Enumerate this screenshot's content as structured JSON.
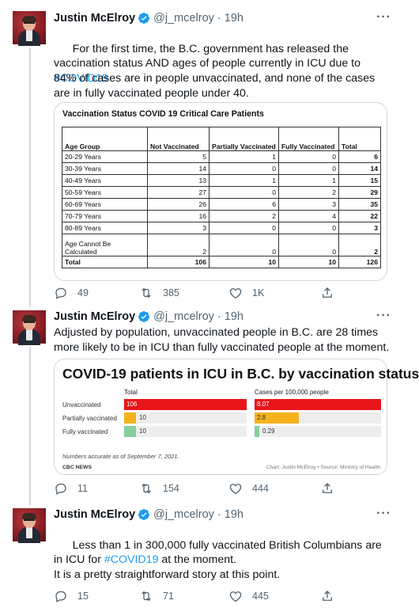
{
  "author": {
    "name": "Justin McElroy",
    "handle": "@j_mcelroy",
    "dot": "·",
    "more": "···"
  },
  "icons": {
    "verified": "verified-badge-icon",
    "reply": "reply-icon",
    "retweet": "retweet-icon",
    "like": "like-icon",
    "share": "share-icon",
    "more": "more-options-icon"
  },
  "colors": {
    "link": "#1d9bf0",
    "secondary": "#536471",
    "verified": "#1d9bf0"
  },
  "tweets": [
    {
      "time": "19h",
      "text_part1": "For the first time, the B.C. government has released the vaccination status AND ages of people currently in ICU due to ",
      "hashtag": "#COVID19",
      "text_part2": "84% of cases are in people unvaccinated, and none of the cases are in fully vaccinated people under 40.",
      "replies": "49",
      "retweets": "385",
      "likes": "1K"
    },
    {
      "time": "19h",
      "text": "Adjusted by population, unvaccinated people in B.C. are 28 times more likely to be in ICU than fully vaccinated people at the moment.",
      "replies": "11",
      "retweets": "154",
      "likes": "444"
    },
    {
      "time": "19h",
      "text_part1": "Less than 1 in 300,000 fully vaccinated British Columbians are in ICU for ",
      "hashtag": "#COVID19",
      "text_part2": " at the moment.",
      "text_part3": "It is a pretty straightforward story at this point.",
      "replies": "15",
      "retweets": "71",
      "likes": "445"
    }
  ],
  "table_image": {
    "title": "Vaccination Status COVID 19 Critical Care Patients",
    "headers": [
      "Age Group",
      "Not Vaccinated",
      "Partially Vaccinated",
      "Fully Vaccinated",
      "Total"
    ],
    "rows": [
      [
        "20-29 Years",
        "5",
        "1",
        "0",
        "6"
      ],
      [
        "30-39 Years",
        "14",
        "0",
        "0",
        "14"
      ],
      [
        "40-49 Years",
        "13",
        "1",
        "1",
        "15"
      ],
      [
        "50-59 Years",
        "27",
        "0",
        "2",
        "29"
      ],
      [
        "60-69 Years",
        "26",
        "6",
        "3",
        "35"
      ],
      [
        "70-79 Years",
        "16",
        "2",
        "4",
        "22"
      ],
      [
        "80-89 Years",
        "3",
        "0",
        "0",
        "3"
      ],
      [
        "Age Cannot Be Calculated",
        "2",
        "0",
        "0",
        "2"
      ]
    ],
    "total_row": [
      "Total",
      "106",
      "10",
      "10",
      "126"
    ]
  },
  "chart_data": {
    "type": "bar",
    "title": "COVID-19 patients in ICU in B.C. by vaccination status",
    "categories": [
      "Unvaccinated",
      "Partially vaccinated",
      "Fully vaccinated"
    ],
    "series": [
      {
        "name": "Total",
        "values": [
          106,
          10,
          10
        ]
      },
      {
        "name": "Cases per 100,000 people",
        "values": [
          8.07,
          2.8,
          0.29
        ]
      }
    ],
    "value_labels": [
      [
        "106",
        "10",
        "10"
      ],
      [
        "8.07",
        "2.8",
        "0.29"
      ]
    ],
    "bar_colors": [
      "#e8151b",
      "#f6b21d",
      "#86cf9c"
    ],
    "note": "Numbers accurate as of September 7, 2021.",
    "source_logo": "CBC NEWS",
    "credit": "Chart: Justin McElroy • Source: Ministry of Health"
  }
}
